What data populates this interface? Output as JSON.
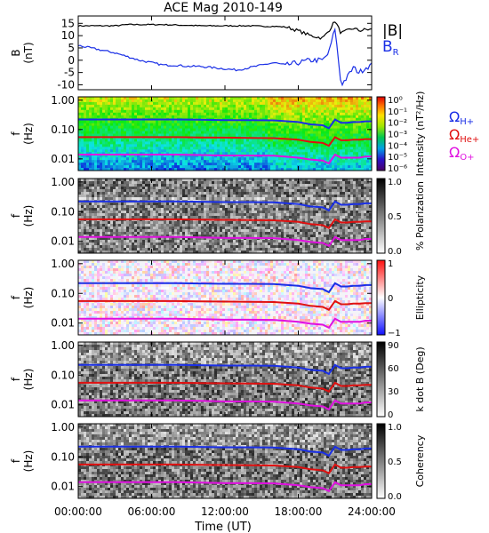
{
  "title": "ACE Mag 2010-149",
  "x_axis": {
    "label": "Time (UT)",
    "ticks": [
      "00:00:00",
      "06:00:00",
      "12:00:00",
      "18:00:00",
      "24:00:00"
    ],
    "tick_hours": [
      0,
      6,
      12,
      18,
      24
    ],
    "range_hours": [
      0,
      24
    ]
  },
  "colors": {
    "b_total": "#000000",
    "b_r": "#1a2fe6",
    "h_plus": "#1a2fe6",
    "he_plus": "#e01010",
    "o_plus": "#e010e0"
  },
  "legend": {
    "b_total": "|B|",
    "b_r": "BR",
    "omega_h": "ΩH+",
    "omega_he": "ΩHe+",
    "omega_o": "ΩO+"
  },
  "chart_data": [
    {
      "type": "line",
      "panel": "magnetic-field",
      "ylabel": "B (nT)",
      "ylim": [
        -12,
        18
      ],
      "y_ticks": [
        "15",
        "10",
        "5",
        "0",
        "-5",
        "-10"
      ],
      "y_tick_values": [
        15,
        10,
        5,
        0,
        -5,
        -10
      ],
      "x_hours": [
        0,
        1,
        2,
        3,
        4,
        5,
        6,
        7,
        8,
        9,
        10,
        11,
        12,
        13,
        14,
        15,
        16,
        17,
        18,
        19,
        20,
        20.5,
        21,
        21.5,
        22,
        22.5,
        23,
        23.5,
        24
      ],
      "series": [
        {
          "name": "|B|",
          "values": [
            14,
            14,
            14,
            14,
            14.5,
            14.5,
            14.5,
            14.5,
            14.3,
            14.2,
            14,
            14,
            14,
            14,
            14,
            13.8,
            13.8,
            13.5,
            12,
            10,
            9,
            12,
            16,
            11,
            12,
            13,
            12,
            12.5,
            12.5
          ]
        },
        {
          "name": "BR",
          "values": [
            6,
            5,
            4,
            3,
            1.5,
            0,
            -1,
            -2,
            -2,
            -2.5,
            -2.5,
            -3,
            -3.5,
            -4,
            -3,
            -2,
            -1,
            -2,
            -1,
            0,
            0,
            3,
            13,
            -10,
            -7,
            -3,
            -5,
            -3,
            -2
          ]
        }
      ]
    },
    {
      "type": "heatmap",
      "panel": "intensity",
      "ylabel": "f (Hz)",
      "y_ticks": [
        "1.00",
        "0.10",
        "0.01"
      ],
      "y_tick_values": [
        1.0,
        0.1,
        0.01
      ],
      "ylim": [
        0.004,
        1.3
      ],
      "y_scale": "log",
      "colorbar_label": "Intensity (nT²/Hz)",
      "colorbar_ticks": [
        "10⁰",
        "10⁻¹",
        "10⁻²",
        "10⁻³",
        "10⁻⁴",
        "10⁻⁵",
        "10⁻⁶"
      ],
      "colormap": "rainbow"
    },
    {
      "type": "heatmap",
      "panel": "polarization",
      "ylabel": "f (Hz)",
      "y_ticks": [
        "1.00",
        "0.10",
        "0.01"
      ],
      "y_tick_values": [
        1.0,
        0.1,
        0.01
      ],
      "ylim": [
        0.004,
        1.3
      ],
      "y_scale": "log",
      "colorbar_label": "% Polarization",
      "colorbar_ticks": [
        "1.0",
        "0.5",
        "0.0"
      ],
      "colormap": "gray"
    },
    {
      "type": "heatmap",
      "panel": "ellipticity",
      "ylabel": "f (Hz)",
      "y_ticks": [
        "1.00",
        "0.10",
        "0.01"
      ],
      "y_tick_values": [
        1.0,
        0.1,
        0.01
      ],
      "ylim": [
        0.004,
        1.3
      ],
      "y_scale": "log",
      "colorbar_label": "Ellipticity",
      "colorbar_ticks": [
        "1",
        "0",
        "−1"
      ],
      "colormap": "blue-white-red"
    },
    {
      "type": "heatmap",
      "panel": "k-dot-b",
      "ylabel": "f (Hz)",
      "y_ticks": [
        "1.00",
        "0.10",
        "0.01"
      ],
      "y_tick_values": [
        1.0,
        0.1,
        0.01
      ],
      "ylim": [
        0.004,
        1.3
      ],
      "y_scale": "log",
      "colorbar_label": "k dot B (Deg)",
      "colorbar_ticks": [
        "90",
        "60",
        "30",
        "0"
      ],
      "colormap": "gray"
    },
    {
      "type": "heatmap",
      "panel": "coherency",
      "ylabel": "f (Hz)",
      "y_ticks": [
        "1.00",
        "0.10",
        "0.01"
      ],
      "y_tick_values": [
        1.0,
        0.1,
        0.01
      ],
      "ylim": [
        0.004,
        1.3
      ],
      "y_scale": "log",
      "colorbar_label": "Coherency",
      "colorbar_ticks": [
        "1.0",
        "0.5",
        "0.0"
      ],
      "colormap": "gray"
    }
  ],
  "gyrofrequency_lines": {
    "x_hours": [
      0,
      2,
      4,
      6,
      8,
      10,
      12,
      14,
      16,
      18,
      19,
      20,
      20.5,
      21,
      21.5,
      22,
      22.5,
      23,
      23.5,
      24
    ],
    "series": [
      {
        "name": "ΩH+",
        "values": [
          0.22,
          0.22,
          0.22,
          0.22,
          0.22,
          0.215,
          0.21,
          0.21,
          0.205,
          0.18,
          0.15,
          0.14,
          0.11,
          0.22,
          0.17,
          0.17,
          0.18,
          0.18,
          0.19,
          0.19
        ]
      },
      {
        "name": "ΩHe+",
        "values": [
          0.055,
          0.055,
          0.055,
          0.055,
          0.055,
          0.054,
          0.053,
          0.052,
          0.051,
          0.045,
          0.038,
          0.035,
          0.028,
          0.055,
          0.043,
          0.043,
          0.045,
          0.045,
          0.047,
          0.047
        ]
      },
      {
        "name": "ΩO+",
        "values": [
          0.014,
          0.014,
          0.014,
          0.014,
          0.014,
          0.0135,
          0.013,
          0.013,
          0.0128,
          0.011,
          0.0095,
          0.0088,
          0.007,
          0.014,
          0.011,
          0.011,
          0.011,
          0.011,
          0.012,
          0.012
        ]
      }
    ]
  }
}
